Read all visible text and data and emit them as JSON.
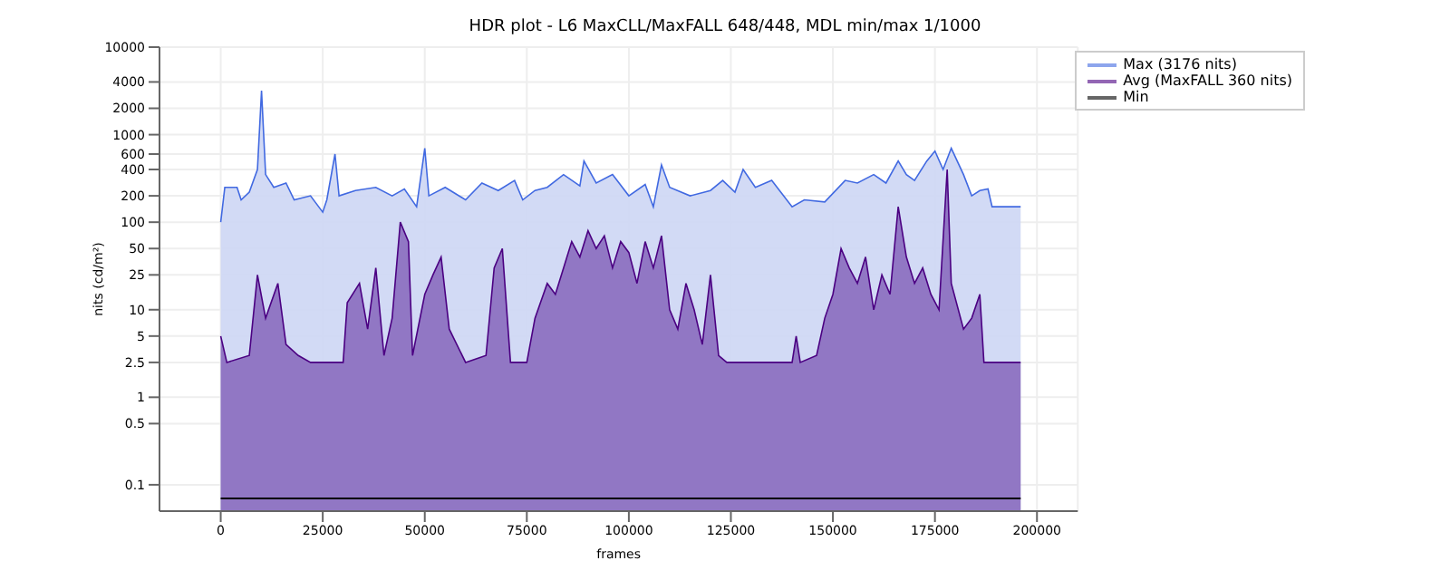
{
  "chart_data": {
    "type": "area",
    "title": "HDR plot - L6 MaxCLL/MaxFALL 648/448, MDL min/max 1/1000",
    "xlabel": "frames",
    "ylabel": "nits (cd/m²)",
    "log": true,
    "grid": true,
    "legend": "top right",
    "xlim": [
      -15000,
      210000
    ],
    "xticks": [
      0,
      25000,
      50000,
      75000,
      100000,
      125000,
      150000,
      175000,
      200000
    ],
    "ylim": [
      0.05,
      10000
    ],
    "yticks": [
      0.1,
      0.5,
      1,
      2.5,
      5,
      10,
      25,
      50,
      100,
      200,
      400,
      600,
      1000,
      2000,
      4000,
      10000
    ],
    "series": [
      {
        "name": "Max (3176 nits)",
        "color": "#4169e1",
        "x": [
          0,
          1000,
          4000,
          5000,
          7000,
          9000,
          10000,
          11000,
          13000,
          16000,
          18000,
          22000,
          25000,
          26000,
          28000,
          29000,
          33000,
          38000,
          42000,
          45000,
          48000,
          50000,
          51000,
          55000,
          60000,
          64000,
          68000,
          72000,
          74000,
          77000,
          80000,
          84000,
          88000,
          89000,
          92000,
          96000,
          100000,
          104000,
          106000,
          108000,
          110000,
          115000,
          120000,
          123000,
          126000,
          128000,
          131000,
          135000,
          140000,
          143000,
          148000,
          153000,
          156000,
          160000,
          163000,
          166000,
          168000,
          170000,
          173000,
          175000,
          177000,
          179000,
          182000,
          184000,
          186000,
          188000,
          189000,
          196000
        ],
        "values": [
          100,
          250,
          250,
          180,
          220,
          400,
          3176,
          350,
          250,
          280,
          180,
          200,
          130,
          180,
          600,
          200,
          230,
          250,
          200,
          240,
          150,
          700,
          200,
          250,
          180,
          280,
          230,
          300,
          180,
          230,
          250,
          350,
          260,
          500,
          280,
          350,
          200,
          270,
          150,
          450,
          250,
          200,
          230,
          300,
          220,
          400,
          250,
          300,
          150,
          180,
          170,
          300,
          280,
          350,
          280,
          500,
          350,
          300,
          500,
          650,
          400,
          700,
          350,
          200,
          230,
          240,
          150,
          150
        ]
      },
      {
        "name": "Avg (MaxFALL 360 nits)",
        "color": "#4b0082",
        "x": [
          0,
          1500,
          7000,
          9000,
          11000,
          14000,
          16000,
          19000,
          22000,
          30000,
          31000,
          34000,
          36000,
          38000,
          40000,
          42000,
          44000,
          46000,
          47000,
          50000,
          52000,
          54000,
          56000,
          60000,
          65000,
          67000,
          69000,
          71000,
          75000,
          77000,
          80000,
          82000,
          84000,
          86000,
          88000,
          90000,
          92000,
          94000,
          96000,
          98000,
          100000,
          102000,
          104000,
          106000,
          108000,
          110000,
          112000,
          114000,
          116000,
          118000,
          120000,
          122000,
          124000,
          140000,
          141000,
          142000,
          146000,
          148000,
          150000,
          152000,
          154000,
          156000,
          158000,
          160000,
          162000,
          164000,
          166000,
          168000,
          170000,
          172000,
          174000,
          176000,
          178000,
          179000,
          182000,
          184000,
          186000,
          187000,
          196000
        ],
        "values": [
          5,
          2.5,
          3,
          25,
          8,
          20,
          4,
          3,
          2.5,
          2.5,
          12,
          20,
          6,
          30,
          3,
          8,
          100,
          60,
          3,
          15,
          25,
          40,
          6,
          2.5,
          3,
          30,
          50,
          2.5,
          2.5,
          8,
          20,
          15,
          30,
          60,
          40,
          80,
          50,
          70,
          30,
          60,
          45,
          20,
          60,
          30,
          70,
          10,
          6,
          20,
          10,
          4,
          25,
          3,
          2.5,
          2.5,
          5,
          2.5,
          3,
          8,
          15,
          50,
          30,
          20,
          40,
          10,
          25,
          15,
          150,
          40,
          20,
          30,
          15,
          10,
          400,
          20,
          6,
          8,
          15,
          2.5,
          2.5
        ]
      },
      {
        "name": "Min",
        "type": "line",
        "color": "#000000",
        "x": [
          0,
          196000
        ],
        "values": [
          0.07,
          0.07
        ]
      }
    ]
  }
}
